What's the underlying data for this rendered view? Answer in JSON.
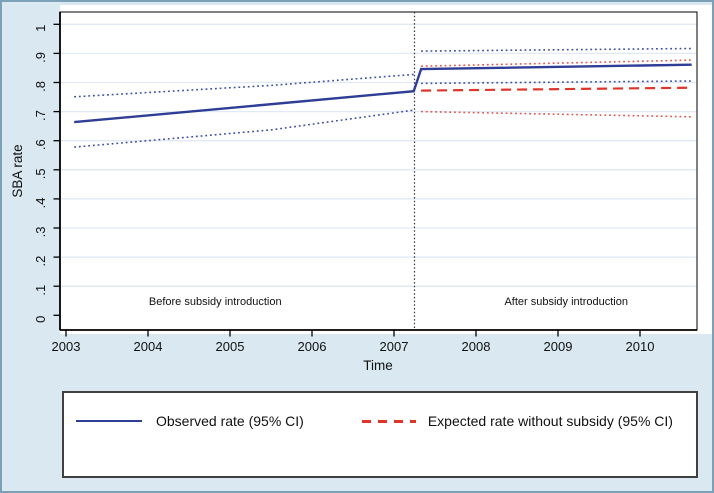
{
  "colors": {
    "figure_bg": "#d9e8f1",
    "figure_border": "#7ba0b8",
    "plot_bg": "#ffffff",
    "grid": "#dfeaf4",
    "axis": "#000000",
    "observed": "#2e3d96",
    "observed_ci": "#3f51a5",
    "expected": "#e0352b",
    "expected_ci": "#e2574e",
    "intervention_line": "#333333",
    "legend_border": "#404040",
    "text": "#111111"
  },
  "chart_data": {
    "type": "line",
    "title": "",
    "xlabel": "Time",
    "ylabel": "SBA rate",
    "xlim": [
      2002.93,
      2010.72
    ],
    "ylim": [
      0,
      1
    ],
    "grid": true,
    "x_ticks": [
      2003,
      2004,
      2005,
      2006,
      2007,
      2008,
      2009,
      2010
    ],
    "y_ticks": [
      "0",
      ".1",
      ".2",
      ".3",
      ".4",
      ".5",
      ".6",
      ".7",
      ".8",
      ".9",
      "1"
    ],
    "y_tick_values": [
      0,
      0.1,
      0.2,
      0.3,
      0.4,
      0.5,
      0.6,
      0.7,
      0.8,
      0.9,
      1
    ],
    "intervention_x": 2007.25,
    "annotations": [
      {
        "text": "Before subsidy introduction",
        "x": 2004.82,
        "y": 0.05
      },
      {
        "text": "After subsidy introduction",
        "x": 2009.1,
        "y": 0.05
      }
    ],
    "series": [
      {
        "name": "observed-rate",
        "style": "solid",
        "color": "#2e3d96",
        "width": 2.4,
        "points": [
          [
            2003.1,
            0.664
          ],
          [
            2007.24,
            0.77
          ],
          [
            2007.33,
            0.846
          ],
          [
            2010.63,
            0.861
          ]
        ]
      },
      {
        "name": "observed-ci-upper-pre",
        "style": "dotted",
        "color": "#3f51a5",
        "width": 1.6,
        "points": [
          [
            2003.1,
            0.751
          ],
          [
            2005.5,
            0.79
          ],
          [
            2007.24,
            0.828
          ]
        ]
      },
      {
        "name": "observed-ci-lower-pre",
        "style": "dotted",
        "color": "#3f51a5",
        "width": 1.6,
        "points": [
          [
            2003.1,
            0.578
          ],
          [
            2005.5,
            0.637
          ],
          [
            2007.24,
            0.705
          ]
        ]
      },
      {
        "name": "observed-ci-upper-post",
        "style": "dotted",
        "color": "#3f51a5",
        "width": 1.6,
        "points": [
          [
            2007.33,
            0.908
          ],
          [
            2010.63,
            0.917
          ]
        ]
      },
      {
        "name": "observed-ci-lower-post",
        "style": "dotted",
        "color": "#3f51a5",
        "width": 1.6,
        "points": [
          [
            2007.33,
            0.797
          ],
          [
            2010.63,
            0.805
          ]
        ]
      },
      {
        "name": "expected-rate-without-subsidy",
        "style": "dashed",
        "color": "#e0352b",
        "width": 2.2,
        "points": [
          [
            2007.33,
            0.772
          ],
          [
            2010.63,
            0.782
          ]
        ]
      },
      {
        "name": "expected-ci-upper",
        "style": "dotted",
        "color": "#e2574e",
        "width": 1.6,
        "points": [
          [
            2007.33,
            0.856
          ],
          [
            2010.63,
            0.877
          ]
        ]
      },
      {
        "name": "expected-ci-lower",
        "style": "dotted",
        "color": "#e2574e",
        "width": 1.6,
        "points": [
          [
            2007.33,
            0.7
          ],
          [
            2010.63,
            0.682
          ]
        ]
      }
    ],
    "legend": {
      "position": "bottom",
      "entries": [
        {
          "label": "Observed rate (95% CI)",
          "style": "solid",
          "color": "#2e3d96"
        },
        {
          "label": "Expected rate without subsidy (95% CI)",
          "style": "dashed",
          "color": "#e0352b"
        }
      ]
    }
  }
}
